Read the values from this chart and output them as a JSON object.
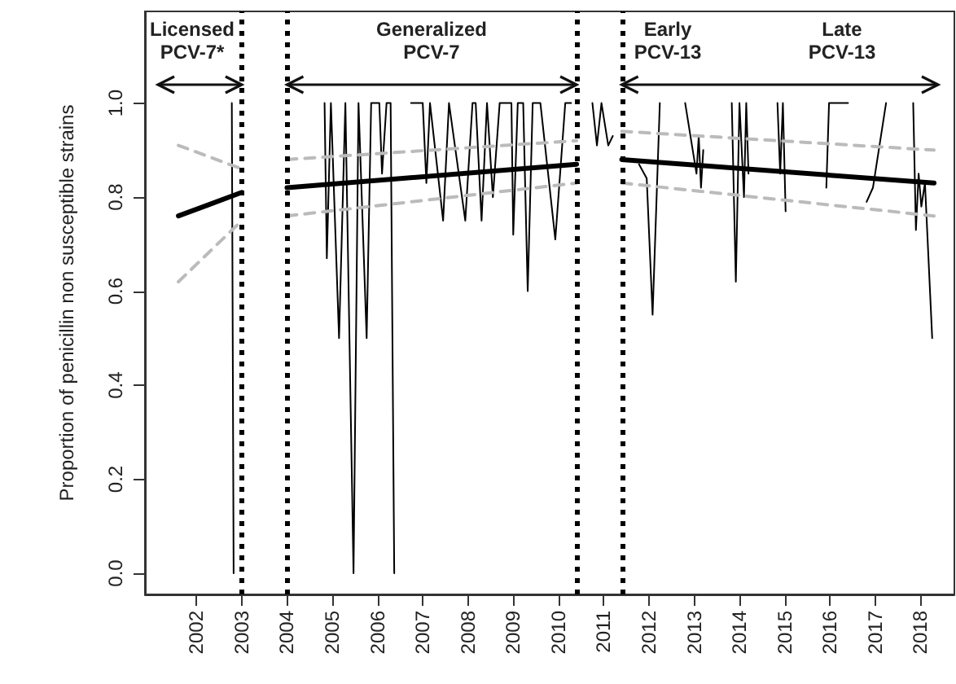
{
  "chart_data": {
    "type": "line",
    "ylabel": "Proportion of penicillin non susceptible strains",
    "xlim": [
      2000.86,
      2018.75
    ],
    "xticks": [
      2002,
      2003,
      2004,
      2005,
      2006,
      2007,
      2008,
      2009,
      2010,
      2011,
      2012,
      2013,
      2014,
      2015,
      2016,
      2017,
      2018
    ],
    "ylim": [
      -0.045,
      1.195
    ],
    "yticks": [
      {
        "value": 0,
        "label": "0.0"
      },
      {
        "value": 0.2,
        "label": "0.2"
      },
      {
        "value": 0.4,
        "label": "0.4"
      },
      {
        "value": 0.6,
        "label": "0.6"
      },
      {
        "value": 0.8,
        "label": "0.8"
      },
      {
        "value": 1,
        "label": "1.0"
      }
    ],
    "marker": "none",
    "grid": false,
    "series": [
      {
        "color": "#000000",
        "line_style": "solid",
        "x": [
          2002.78,
          2002.82,
          2004.5,
          2004.83,
          2004.88,
          2004.97,
          2005.15,
          2005.29,
          2005.47,
          2005.58,
          2005.76,
          2005.86,
          2006.04,
          2006.1,
          2006.2,
          2006.29,
          2006.37,
          2006.55,
          2006.74,
          2007.0,
          2007.08,
          2007.16,
          2007.45,
          2007.58,
          2007.94,
          2008.1,
          2008.17,
          2008.3,
          2008.42,
          2008.55,
          2008.7,
          2008.96,
          2009.0,
          2009.1,
          2009.22,
          2009.32,
          2009.43,
          2009.6,
          2009.93,
          2010.15,
          2010.28,
          2010.5,
          2010.75,
          2010.85,
          2010.95,
          2011.1,
          2011.2,
          2011.5,
          2011.78,
          2011.95,
          2012.08,
          2012.24,
          2012.5,
          2012.8,
          2013.0,
          2013.05,
          2013.1,
          2013.15,
          2013.2,
          2013.5,
          2013.83,
          2013.92,
          2014.0,
          2014.1,
          2014.15,
          2014.2,
          2014.5,
          2014.84,
          2014.9,
          2014.96,
          2015.02,
          2015.4,
          2015.92,
          2015.98,
          2016.4,
          2016.6,
          2016.81,
          2016.95,
          2017.24,
          2017.5,
          2017.84,
          2017.9,
          2017.96,
          2018.02,
          2018.1,
          2018.26
        ],
        "values": [
          1.0,
          0.0,
          null,
          1.0,
          0.67,
          1.0,
          0.5,
          1.0,
          0.0,
          1.0,
          0.5,
          1.0,
          1.0,
          0.85,
          1.0,
          1.0,
          0.0,
          null,
          1.0,
          1.0,
          0.83,
          1.0,
          0.75,
          1.0,
          0.75,
          1.0,
          1.0,
          0.75,
          1.0,
          0.8,
          1.0,
          1.0,
          0.72,
          1.0,
          1.0,
          0.6,
          1.0,
          1.0,
          0.71,
          1.0,
          1.0,
          null,
          1.0,
          0.91,
          1.0,
          0.91,
          0.93,
          null,
          0.87,
          0.84,
          0.55,
          1.0,
          null,
          1.0,
          0.88,
          0.85,
          0.93,
          0.82,
          0.9,
          null,
          1.0,
          0.62,
          1.0,
          0.8,
          1.0,
          0.85,
          null,
          1.0,
          0.85,
          1.0,
          0.77,
          null,
          0.82,
          1.0,
          1.0,
          null,
          0.79,
          0.82,
          1.0,
          null,
          1.0,
          0.73,
          0.85,
          0.78,
          0.83,
          0.5
        ]
      },
      {
        "color": "#000000",
        "line_style": "solid",
        "x": [
          2001.6,
          2003,
          2003.5,
          2004,
          2010.4,
          2010.9,
          2011.4,
          2018.3
        ],
        "values": [
          0.76,
          0.81,
          null,
          0.82,
          0.87,
          null,
          0.88,
          0.83
        ]
      },
      {
        "color": "#bbbbbb",
        "line_style": "dashed",
        "x": [
          2001.6,
          2003,
          2003.5,
          2004,
          2010.4,
          2010.9,
          2011.4,
          2018.3
        ],
        "values": [
          0.91,
          0.86,
          null,
          0.88,
          0.92,
          null,
          0.94,
          0.9
        ]
      },
      {
        "color": "#bbbbbb",
        "line_style": "dashed",
        "x": [
          2001.6,
          2003,
          2003.5,
          2004,
          2010.4,
          2010.9,
          2011.4,
          2018.3
        ],
        "values": [
          0.62,
          0.75,
          null,
          0.76,
          0.83,
          null,
          0.83,
          0.76
        ]
      }
    ],
    "ref_lines": [
      {
        "axis": "x",
        "value": 2003,
        "line_style": "dotted",
        "color": "#000000"
      },
      {
        "axis": "x",
        "value": 2004,
        "line_style": "dotted",
        "color": "#000000"
      },
      {
        "axis": "x",
        "value": 2010.4,
        "line_style": "dotted",
        "color": "#000000"
      },
      {
        "axis": "x",
        "value": 2011.4,
        "line_style": "dotted",
        "color": "#000000"
      }
    ],
    "annotations": [
      "Licensed\nPCV-7*",
      "Generalized\nPCV-7",
      "Early\nPCV-13",
      "Late\nPCV-13"
    ]
  }
}
